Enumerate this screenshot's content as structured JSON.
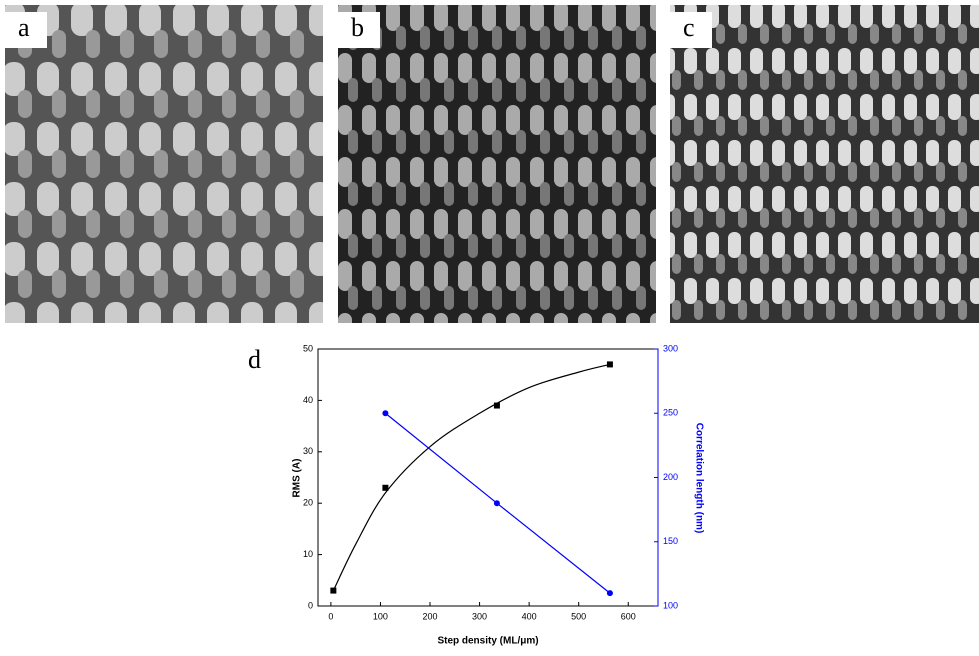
{
  "panels": [
    "a",
    "b",
    "c"
  ],
  "chart_data": {
    "type": "line",
    "panel_label": "d",
    "x_label": "Step density (ML/μm)",
    "y_label": "RMS (A)",
    "y2_label": "Correlation length (nm)",
    "xlim": [
      -26,
      660
    ],
    "xticks": [
      0,
      100,
      200,
      300,
      400,
      500,
      600
    ],
    "ylim": [
      0,
      50
    ],
    "yticks": [
      0,
      10,
      20,
      30,
      40,
      50
    ],
    "y2lim": [
      100,
      300
    ],
    "y2ticks": [
      100,
      150,
      200,
      250,
      300
    ],
    "y2_color": "#0000ff",
    "series": [
      {
        "color": "#000000",
        "marker": "square",
        "line": false,
        "x": [
          5,
          110,
          335,
          563
        ],
        "values": [
          3,
          23,
          39,
          47
        ]
      },
      {
        "color": "#000000",
        "marker": "none",
        "line": true,
        "x": [
          5,
          50,
          110,
          200,
          300,
          400,
          500,
          563
        ],
        "values": [
          3,
          12,
          22,
          31,
          37.5,
          42.5,
          45.5,
          47
        ]
      },
      {
        "color": "#0000ff",
        "marker": "circle",
        "line": true,
        "axis": "y2",
        "x": [
          110,
          335,
          563
        ],
        "values": [
          250,
          180,
          110
        ]
      }
    ]
  }
}
